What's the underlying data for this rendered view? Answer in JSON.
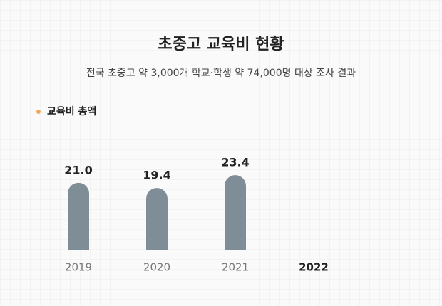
{
  "chart_data": {
    "type": "bar",
    "title": "초중고 교육비 현황",
    "subtitle": "전국 초중고 약 3,000개 학교·학생 약 74,000명 대상 조사 결과",
    "categories": [
      "2019",
      "2020",
      "2021",
      "2022"
    ],
    "series": [
      {
        "name": "교육비 총액",
        "color": "#7f8d97",
        "values": [
          21.0,
          19.4,
          23.4,
          null
        ],
        "value_labels": [
          "21.0",
          "19.4",
          "23.4",
          null
        ]
      }
    ],
    "legend_marker_color": "#f2a65a"
  }
}
